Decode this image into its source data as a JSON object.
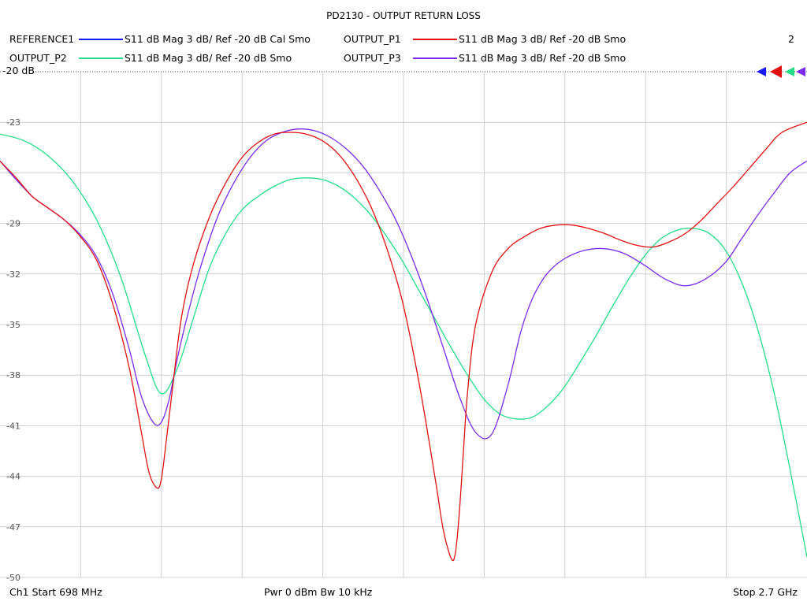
{
  "header": {
    "title": "PD2130 - OUTPUT RETURN LOSS",
    "channel_number": "2"
  },
  "legend": [
    {
      "name": "REFERENCE1",
      "desc": "S11  dB Mag  3 dB/ Ref -20 dB  Cal Smo",
      "color": "#1a1aff"
    },
    {
      "name": "OUTPUT_P1",
      "desc": "S11  dB Mag  3 dB/ Ref -20 dB  Smo",
      "color": "#e01010"
    },
    {
      "name": "OUTPUT_P2",
      "desc": "S11  dB Mag  3 dB/ Ref -20 dB  Smo",
      "color": "#22dd88"
    },
    {
      "name": "OUTPUT_P3",
      "desc": "S11  dB Mag  3 dB/ Ref -20 dB  Smo",
      "color": "#7a2aee"
    }
  ],
  "ref_label": "-20 dB",
  "footer": {
    "start": "Ch1  Start  698 MHz",
    "power": "Pwr  0 dBm  Bw  10 kHz",
    "stop": "Stop  2.7 GHz"
  },
  "chart_data": {
    "type": "line",
    "title": "PD2130 - OUTPUT RETURN LOSS",
    "xlabel": "",
    "ylabel": "",
    "x_unit": "GHz",
    "xlim": [
      0.698,
      2.7
    ],
    "ylim": [
      -50,
      -20
    ],
    "yticks": [
      -20,
      -23,
      -26,
      -29,
      -32,
      -35,
      -38,
      -41,
      -44,
      -47,
      -50
    ],
    "ytick_labels": [
      "-20",
      "-23",
      "",
      "-29",
      "-32",
      "-35",
      "-38",
      "-41",
      "-44",
      "-47",
      "-50"
    ],
    "grid": true,
    "x_divisions": 10,
    "series": [
      {
        "name": "OUTPUT_P2",
        "color": "#22dd88",
        "x": [
          0.698,
          0.758,
          0.818,
          0.878,
          0.938,
          0.998,
          1.058,
          1.098,
          1.138,
          1.178,
          1.218,
          1.258,
          1.298,
          1.338,
          1.378,
          1.418,
          1.458,
          1.498,
          1.538,
          1.578,
          1.618,
          1.658,
          1.698,
          1.738,
          1.778,
          1.818,
          1.858,
          1.898,
          1.938,
          1.978,
          2.018,
          2.058,
          2.098,
          2.138,
          2.178,
          2.218,
          2.258,
          2.298,
          2.338,
          2.378,
          2.418,
          2.458,
          2.498,
          2.538,
          2.578,
          2.618,
          2.658,
          2.7
        ],
        "values": [
          -23.7,
          -24.1,
          -25.0,
          -26.5,
          -28.8,
          -32.2,
          -36.8,
          -39.1,
          -37.6,
          -34.6,
          -31.6,
          -29.6,
          -28.2,
          -27.4,
          -26.8,
          -26.4,
          -26.3,
          -26.4,
          -26.8,
          -27.5,
          -28.5,
          -29.8,
          -31.3,
          -33.0,
          -34.7,
          -36.4,
          -38.0,
          -39.4,
          -40.3,
          -40.6,
          -40.5,
          -39.8,
          -38.7,
          -37.2,
          -35.6,
          -33.9,
          -32.3,
          -30.9,
          -29.9,
          -29.4,
          -29.3,
          -29.6,
          -30.6,
          -32.5,
          -35.3,
          -39.0,
          -43.6,
          -48.8
        ]
      },
      {
        "name": "OUTPUT_P3",
        "color": "#7a2aee",
        "x": [
          0.698,
          0.738,
          0.778,
          0.818,
          0.858,
          0.898,
          0.938,
          0.978,
          1.018,
          1.048,
          1.078,
          1.098,
          1.118,
          1.138,
          1.168,
          1.198,
          1.238,
          1.278,
          1.318,
          1.358,
          1.398,
          1.438,
          1.478,
          1.518,
          1.558,
          1.598,
          1.638,
          1.678,
          1.718,
          1.758,
          1.798,
          1.838,
          1.878,
          1.918,
          1.958,
          1.988,
          2.008,
          2.028,
          2.058,
          2.098,
          2.148,
          2.198,
          2.248,
          2.298,
          2.348,
          2.398,
          2.448,
          2.498,
          2.538,
          2.578,
          2.618,
          2.658,
          2.7
        ],
        "values": [
          -25.3,
          -26.4,
          -27.4,
          -28.1,
          -28.8,
          -29.7,
          -31.0,
          -33.2,
          -36.4,
          -39.2,
          -40.8,
          -40.8,
          -39.4,
          -37.0,
          -34.0,
          -31.4,
          -28.6,
          -26.6,
          -25.1,
          -24.1,
          -23.6,
          -23.4,
          -23.5,
          -23.9,
          -24.6,
          -25.6,
          -27.0,
          -28.7,
          -30.9,
          -33.5,
          -36.4,
          -39.3,
          -41.4,
          -41.5,
          -38.6,
          -35.6,
          -34.1,
          -33.0,
          -31.9,
          -31.1,
          -30.6,
          -30.5,
          -30.8,
          -31.5,
          -32.3,
          -32.7,
          -32.3,
          -31.3,
          -29.9,
          -28.5,
          -27.2,
          -26.0,
          -25.3
        ]
      },
      {
        "name": "OUTPUT_P1",
        "color": "#e01010",
        "x": [
          0.698,
          0.738,
          0.778,
          0.818,
          0.858,
          0.898,
          0.938,
          0.978,
          1.018,
          1.048,
          1.068,
          1.088,
          1.098,
          1.108,
          1.128,
          1.148,
          1.178,
          1.218,
          1.258,
          1.298,
          1.338,
          1.378,
          1.418,
          1.458,
          1.498,
          1.538,
          1.578,
          1.618,
          1.658,
          1.698,
          1.738,
          1.778,
          1.798,
          1.818,
          1.828,
          1.838,
          1.848,
          1.858,
          1.878,
          1.918,
          1.958,
          1.998,
          2.038,
          2.078,
          2.118,
          2.158,
          2.198,
          2.238,
          2.278,
          2.318,
          2.358,
          2.398,
          2.438,
          2.478,
          2.518,
          2.558,
          2.598,
          2.638,
          2.7
        ],
        "values": [
          -25.3,
          -26.3,
          -27.4,
          -28.1,
          -28.8,
          -29.8,
          -31.2,
          -33.8,
          -37.5,
          -41.3,
          -43.8,
          -44.7,
          -44.2,
          -42.4,
          -38.4,
          -34.6,
          -31.4,
          -28.6,
          -26.6,
          -25.1,
          -24.2,
          -23.7,
          -23.6,
          -23.7,
          -24.1,
          -24.9,
          -26.2,
          -28.0,
          -30.5,
          -33.8,
          -38.5,
          -44.2,
          -47.2,
          -48.9,
          -48.5,
          -46.0,
          -42.4,
          -39.0,
          -35.0,
          -31.9,
          -30.5,
          -29.8,
          -29.3,
          -29.1,
          -29.1,
          -29.3,
          -29.6,
          -30.0,
          -30.3,
          -30.4,
          -30.1,
          -29.6,
          -28.8,
          -27.8,
          -26.8,
          -25.7,
          -24.6,
          -23.6,
          -23.0
        ]
      },
      {
        "name": "REFERENCE1",
        "color": "#1a1aff",
        "x": [],
        "values": []
      }
    ]
  }
}
